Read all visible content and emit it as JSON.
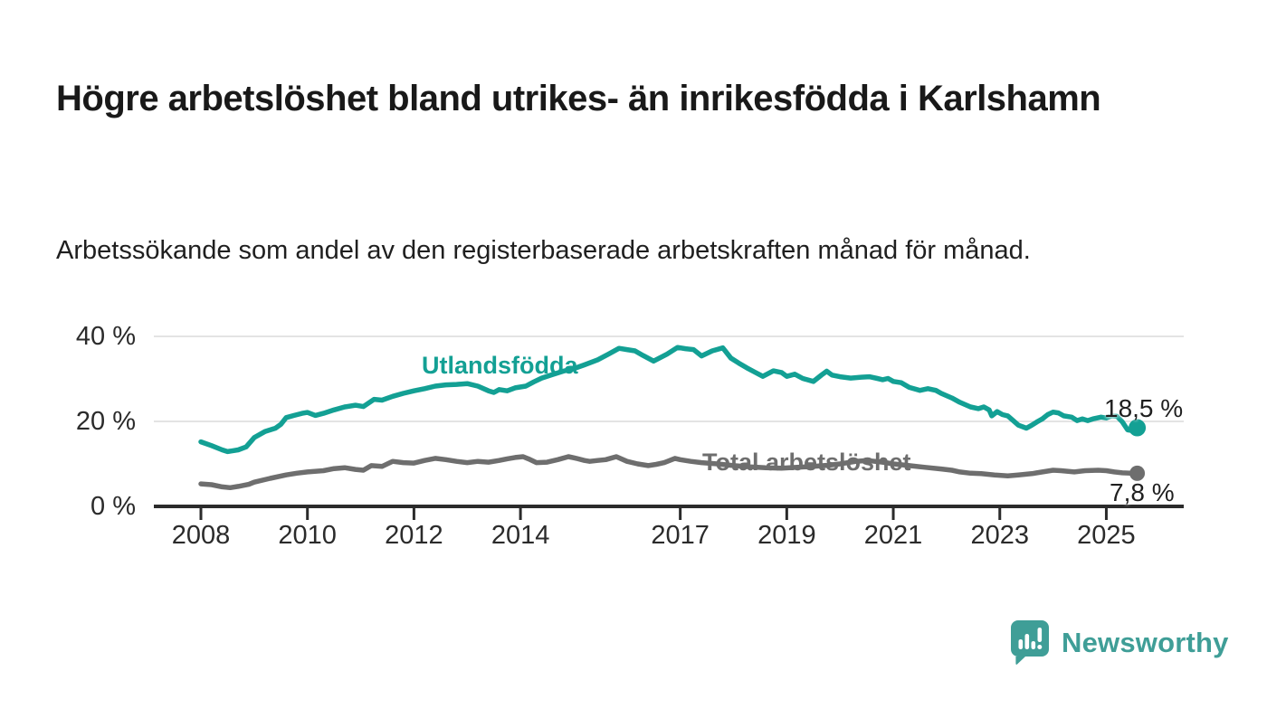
{
  "title": "Högre arbetslöshet bland utrikes- än inrikesfödda i Karlshamn",
  "subtitle": "Arbetssökande som andel av den registerbaserade arbetskraften månad för månad.",
  "branding": {
    "logo_text": "Newsworthy",
    "logo_color": "#3f9e97"
  },
  "colors": {
    "series_foreign": "#13a094",
    "series_total": "#6e6e6e",
    "grid": "#dadada",
    "axis": "#2b2b2b",
    "text": "#191919"
  },
  "chart_data": {
    "type": "line",
    "title": "",
    "xlabel": "",
    "ylabel": "",
    "ylim": [
      0,
      40
    ],
    "xlim": [
      2008,
      2025.8
    ],
    "grid": "horizontal",
    "y_ticks": [
      {
        "value": 0,
        "label": "0 %"
      },
      {
        "value": 20,
        "label": "20 %"
      },
      {
        "value": 40,
        "label": "40 %"
      }
    ],
    "x_ticks": [
      {
        "year": 2008,
        "label": "2008"
      },
      {
        "year": 2010,
        "label": "2010"
      },
      {
        "year": 2012,
        "label": "2012"
      },
      {
        "year": 2014,
        "label": "2014"
      },
      {
        "year": 2017,
        "label": "2017"
      },
      {
        "year": 2019,
        "label": "2019"
      },
      {
        "year": 2021,
        "label": "2021"
      },
      {
        "year": 2023,
        "label": "2023"
      },
      {
        "year": 2025,
        "label": "2025"
      }
    ],
    "series": [
      {
        "name": "Utlandsfödda",
        "color": "#13a094",
        "end_label": "18,5 %",
        "end_value": 18.5,
        "points": [
          [
            2008.0,
            15.2
          ],
          [
            2008.2,
            14.3
          ],
          [
            2008.4,
            13.3
          ],
          [
            2008.5,
            12.9
          ],
          [
            2008.7,
            13.3
          ],
          [
            2008.85,
            14.0
          ],
          [
            2009.0,
            16.2
          ],
          [
            2009.2,
            17.6
          ],
          [
            2009.4,
            18.4
          ],
          [
            2009.5,
            19.3
          ],
          [
            2009.6,
            20.9
          ],
          [
            2009.75,
            21.4
          ],
          [
            2009.9,
            21.9
          ],
          [
            2010.0,
            22.1
          ],
          [
            2010.15,
            21.4
          ],
          [
            2010.3,
            21.9
          ],
          [
            2010.5,
            22.7
          ],
          [
            2010.7,
            23.4
          ],
          [
            2010.9,
            23.8
          ],
          [
            2011.05,
            23.5
          ],
          [
            2011.25,
            25.2
          ],
          [
            2011.4,
            25.0
          ],
          [
            2011.6,
            25.9
          ],
          [
            2011.8,
            26.6
          ],
          [
            2012.0,
            27.2
          ],
          [
            2012.2,
            27.7
          ],
          [
            2012.4,
            28.3
          ],
          [
            2012.6,
            28.6
          ],
          [
            2012.8,
            28.7
          ],
          [
            2013.0,
            28.9
          ],
          [
            2013.2,
            28.3
          ],
          [
            2013.4,
            27.2
          ],
          [
            2013.5,
            26.8
          ],
          [
            2013.6,
            27.5
          ],
          [
            2013.75,
            27.2
          ],
          [
            2013.9,
            27.9
          ],
          [
            2014.1,
            28.3
          ],
          [
            2014.25,
            29.3
          ],
          [
            2014.4,
            30.2
          ],
          [
            2014.6,
            31.0
          ],
          [
            2014.8,
            31.8
          ],
          [
            2015.0,
            32.4
          ],
          [
            2015.2,
            33.3
          ],
          [
            2015.45,
            34.5
          ],
          [
            2015.65,
            35.8
          ],
          [
            2015.85,
            37.2
          ],
          [
            2016.0,
            36.9
          ],
          [
            2016.15,
            36.6
          ],
          [
            2016.3,
            35.5
          ],
          [
            2016.5,
            34.2
          ],
          [
            2016.75,
            35.8
          ],
          [
            2016.95,
            37.4
          ],
          [
            2017.1,
            37.1
          ],
          [
            2017.25,
            36.9
          ],
          [
            2017.4,
            35.4
          ],
          [
            2017.6,
            36.6
          ],
          [
            2017.8,
            37.3
          ],
          [
            2017.95,
            34.9
          ],
          [
            2018.1,
            33.7
          ],
          [
            2018.25,
            32.6
          ],
          [
            2018.4,
            31.6
          ],
          [
            2018.55,
            30.6
          ],
          [
            2018.75,
            31.9
          ],
          [
            2018.9,
            31.5
          ],
          [
            2019.0,
            30.6
          ],
          [
            2019.15,
            31.1
          ],
          [
            2019.3,
            30.1
          ],
          [
            2019.5,
            29.4
          ],
          [
            2019.65,
            30.9
          ],
          [
            2019.75,
            31.8
          ],
          [
            2019.85,
            30.9
          ],
          [
            2020.0,
            30.5
          ],
          [
            2020.2,
            30.2
          ],
          [
            2020.4,
            30.4
          ],
          [
            2020.55,
            30.5
          ],
          [
            2020.7,
            30.1
          ],
          [
            2020.8,
            29.8
          ],
          [
            2020.9,
            30.1
          ],
          [
            2021.0,
            29.4
          ],
          [
            2021.15,
            29.1
          ],
          [
            2021.3,
            28.0
          ],
          [
            2021.5,
            27.3
          ],
          [
            2021.65,
            27.7
          ],
          [
            2021.8,
            27.3
          ],
          [
            2021.9,
            26.6
          ],
          [
            2022.1,
            25.5
          ],
          [
            2022.25,
            24.5
          ],
          [
            2022.45,
            23.4
          ],
          [
            2022.6,
            23.0
          ],
          [
            2022.7,
            23.4
          ],
          [
            2022.8,
            22.7
          ],
          [
            2022.85,
            21.3
          ],
          [
            2022.95,
            22.3
          ],
          [
            2023.05,
            21.6
          ],
          [
            2023.15,
            21.3
          ],
          [
            2023.25,
            20.2
          ],
          [
            2023.35,
            19.1
          ],
          [
            2023.5,
            18.4
          ],
          [
            2023.6,
            19.1
          ],
          [
            2023.7,
            19.9
          ],
          [
            2023.8,
            20.6
          ],
          [
            2023.9,
            21.6
          ],
          [
            2024.0,
            22.2
          ],
          [
            2024.1,
            22.0
          ],
          [
            2024.2,
            21.3
          ],
          [
            2024.35,
            21.0
          ],
          [
            2024.45,
            20.2
          ],
          [
            2024.55,
            20.6
          ],
          [
            2024.65,
            20.2
          ],
          [
            2024.75,
            20.6
          ],
          [
            2024.9,
            21.0
          ],
          [
            2025.0,
            20.8
          ],
          [
            2025.1,
            21.3
          ],
          [
            2025.2,
            21.2
          ],
          [
            2025.3,
            19.9
          ],
          [
            2025.4,
            18.0
          ],
          [
            2025.5,
            17.8
          ],
          [
            2025.58,
            18.5
          ]
        ]
      },
      {
        "name": "Total arbetslöshet",
        "color": "#6e6e6e",
        "end_label": "7,8 %",
        "end_value": 7.8,
        "points": [
          [
            2008.0,
            5.3
          ],
          [
            2008.2,
            5.1
          ],
          [
            2008.4,
            4.6
          ],
          [
            2008.55,
            4.4
          ],
          [
            2008.7,
            4.7
          ],
          [
            2008.9,
            5.2
          ],
          [
            2009.0,
            5.7
          ],
          [
            2009.3,
            6.6
          ],
          [
            2009.6,
            7.4
          ],
          [
            2009.8,
            7.8
          ],
          [
            2010.0,
            8.1
          ],
          [
            2010.3,
            8.4
          ],
          [
            2010.5,
            8.9
          ],
          [
            2010.7,
            9.1
          ],
          [
            2010.9,
            8.7
          ],
          [
            2011.05,
            8.5
          ],
          [
            2011.2,
            9.6
          ],
          [
            2011.4,
            9.4
          ],
          [
            2011.6,
            10.6
          ],
          [
            2011.8,
            10.3
          ],
          [
            2012.0,
            10.2
          ],
          [
            2012.2,
            10.8
          ],
          [
            2012.4,
            11.3
          ],
          [
            2012.6,
            11.0
          ],
          [
            2012.8,
            10.6
          ],
          [
            2013.0,
            10.3
          ],
          [
            2013.2,
            10.6
          ],
          [
            2013.4,
            10.4
          ],
          [
            2013.6,
            10.8
          ],
          [
            2013.75,
            11.2
          ],
          [
            2013.9,
            11.5
          ],
          [
            2014.05,
            11.7
          ],
          [
            2014.15,
            11.2
          ],
          [
            2014.3,
            10.3
          ],
          [
            2014.5,
            10.4
          ],
          [
            2014.7,
            11.0
          ],
          [
            2014.9,
            11.7
          ],
          [
            2015.05,
            11.3
          ],
          [
            2015.2,
            10.8
          ],
          [
            2015.3,
            10.6
          ],
          [
            2015.45,
            10.8
          ],
          [
            2015.6,
            11.0
          ],
          [
            2015.8,
            11.7
          ],
          [
            2016.0,
            10.6
          ],
          [
            2016.2,
            10.0
          ],
          [
            2016.4,
            9.6
          ],
          [
            2016.55,
            9.9
          ],
          [
            2016.7,
            10.3
          ],
          [
            2016.9,
            11.3
          ],
          [
            2017.0,
            11.0
          ],
          [
            2017.2,
            10.6
          ],
          [
            2017.4,
            10.3
          ],
          [
            2017.7,
            10.0
          ],
          [
            2018.0,
            9.6
          ],
          [
            2018.3,
            9.3
          ],
          [
            2018.6,
            9.1
          ],
          [
            2018.9,
            9.0
          ],
          [
            2019.2,
            9.2
          ],
          [
            2019.5,
            9.4
          ],
          [
            2019.8,
            9.7
          ],
          [
            2020.0,
            10.0
          ],
          [
            2020.3,
            10.6
          ],
          [
            2020.5,
            10.8
          ],
          [
            2020.8,
            10.4
          ],
          [
            2021.0,
            10.0
          ],
          [
            2021.3,
            9.6
          ],
          [
            2021.6,
            9.2
          ],
          [
            2021.9,
            8.8
          ],
          [
            2022.1,
            8.5
          ],
          [
            2022.25,
            8.1
          ],
          [
            2022.45,
            7.8
          ],
          [
            2022.65,
            7.7
          ],
          [
            2022.9,
            7.4
          ],
          [
            2023.15,
            7.2
          ],
          [
            2023.35,
            7.4
          ],
          [
            2023.6,
            7.7
          ],
          [
            2023.8,
            8.1
          ],
          [
            2024.0,
            8.5
          ],
          [
            2024.15,
            8.4
          ],
          [
            2024.4,
            8.1
          ],
          [
            2024.6,
            8.4
          ],
          [
            2024.85,
            8.5
          ],
          [
            2025.0,
            8.4
          ],
          [
            2025.15,
            8.1
          ],
          [
            2025.3,
            7.9
          ],
          [
            2025.45,
            7.8
          ],
          [
            2025.58,
            7.8
          ]
        ]
      }
    ]
  }
}
